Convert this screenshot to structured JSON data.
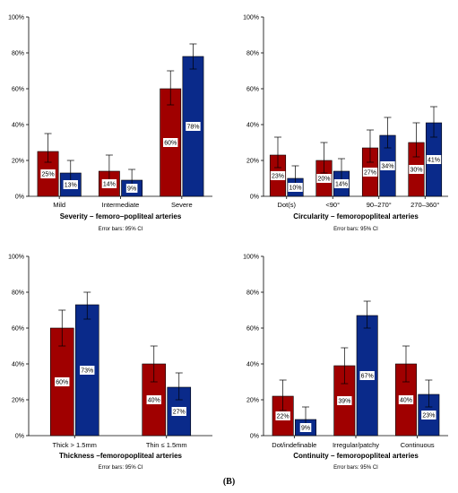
{
  "figure_label": "(B)",
  "colors": {
    "series_a": "#a00000",
    "series_b": "#0a2a8a",
    "axis": "#000000"
  },
  "error_note": "Error bars: 95% CI",
  "chart_data": [
    {
      "type": "bar",
      "title": "Severity – femoro–popliteal arteries",
      "note": "Error bars: 95% CI",
      "categories": [
        "Mild",
        "Intermediate",
        "Severe"
      ],
      "ylim": [
        0,
        100
      ],
      "yticks": [
        "0%",
        "20%",
        "40%",
        "60%",
        "80%",
        "100%"
      ],
      "series": [
        {
          "values": [
            25,
            14,
            60
          ],
          "labels": [
            "25%",
            "14%",
            "60%"
          ],
          "err_low": [
            19,
            9,
            51
          ],
          "err_high": [
            35,
            23,
            70
          ]
        },
        {
          "values": [
            13,
            9,
            78
          ],
          "labels": [
            "13%",
            "9%",
            "78%"
          ],
          "err_low": [
            8,
            4,
            71
          ],
          "err_high": [
            20,
            15,
            85
          ]
        }
      ]
    },
    {
      "type": "bar",
      "title": "Circularity – femoropopliteal arteries",
      "note": "Error bars: 95% CI",
      "categories": [
        "Dot(s)",
        "<90°",
        "90–270°",
        "270–360°"
      ],
      "ylim": [
        0,
        100
      ],
      "yticks": [
        "0%",
        "20%",
        "40%",
        "60%",
        "80%",
        "100%"
      ],
      "series": [
        {
          "values": [
            23,
            20,
            27,
            30
          ],
          "labels": [
            "23%",
            "20%",
            "27%",
            "30%"
          ],
          "err_low": [
            16,
            13,
            19,
            22
          ],
          "err_high": [
            33,
            30,
            37,
            41
          ]
        },
        {
          "values": [
            10,
            14,
            34,
            41
          ],
          "labels": [
            "10%",
            "14%",
            "34%",
            "41%"
          ],
          "err_low": [
            6,
            9,
            27,
            33
          ],
          "err_high": [
            17,
            21,
            44,
            50
          ]
        }
      ]
    },
    {
      "type": "bar",
      "title": "Thickness –femoropopliteal arteries",
      "note": "Error bars: 95% CI",
      "categories": [
        "Thick > 1.5mm",
        "Thin ≤ 1.5mm"
      ],
      "ylim": [
        0,
        100
      ],
      "yticks": [
        "0%",
        "20%",
        "40%",
        "60%",
        "80%",
        "100%"
      ],
      "series": [
        {
          "values": [
            60,
            40
          ],
          "labels": [
            "60%",
            "40%"
          ],
          "err_low": [
            50,
            30
          ],
          "err_high": [
            70,
            50
          ]
        },
        {
          "values": [
            73,
            27
          ],
          "labels": [
            "73%",
            "27%"
          ],
          "err_low": [
            65,
            20
          ],
          "err_high": [
            80,
            35
          ]
        }
      ]
    },
    {
      "type": "bar",
      "title": "Continuity – femoropopliteal arteries",
      "note": "Error bars: 95% CI",
      "categories": [
        "Dot/indefinable",
        "Irregular/patchy",
        "Continuous"
      ],
      "ylim": [
        0,
        100
      ],
      "yticks": [
        "0%",
        "20%",
        "40%",
        "60%",
        "80%",
        "100%"
      ],
      "series": [
        {
          "values": [
            22,
            39,
            40
          ],
          "labels": [
            "22%",
            "39%",
            "40%"
          ],
          "err_low": [
            14,
            29,
            30
          ],
          "err_high": [
            31,
            49,
            50
          ]
        },
        {
          "values": [
            9,
            67,
            23
          ],
          "labels": [
            "9%",
            "67%",
            "23%"
          ],
          "err_low": [
            5,
            60,
            16
          ],
          "err_high": [
            16,
            75,
            31
          ]
        }
      ]
    }
  ]
}
